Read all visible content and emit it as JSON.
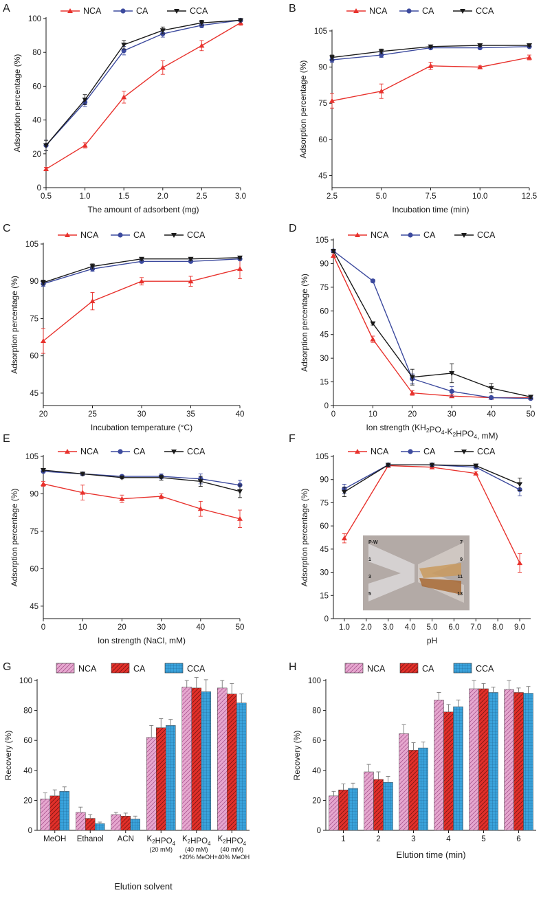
{
  "colors": {
    "NCA": "#e8322d",
    "CA": "#3c4a9e",
    "CCA": "#1a1a1a",
    "barNCA": "#e6a7cf",
    "barCA": "#e2302a",
    "barCCA": "#3aa3dc"
  },
  "chart_data": [
    {
      "panel": "A",
      "type": "line",
      "xlabel": "The amount of adsorbent (mg)",
      "ylabel": "Adsorption percentage (%)",
      "xlim": [
        0.5,
        3.0
      ],
      "ylim": [
        0,
        100
      ],
      "xticks": [
        "0.5",
        "1.0",
        "1.5",
        "2.0",
        "2.5",
        "3.0"
      ],
      "yticks": [
        "0",
        "20",
        "40",
        "60",
        "80",
        "100"
      ],
      "x": [
        0.5,
        1.0,
        1.5,
        2.0,
        2.5,
        3.0
      ],
      "legend": [
        "NCA",
        "CA",
        "CCA"
      ],
      "series": [
        {
          "name": "NCA",
          "values": [
            11,
            25,
            53.5,
            71,
            84,
            97.5
          ],
          "err": [
            1,
            1.5,
            3.5,
            4,
            3,
            1.5
          ]
        },
        {
          "name": "CA",
          "values": [
            25,
            50.5,
            81,
            91,
            96,
            99
          ],
          "err": [
            3,
            2.5,
            2.5,
            2,
            1.5,
            0.5
          ]
        },
        {
          "name": "CCA",
          "values": [
            25,
            52,
            84.5,
            93,
            97.5,
            99
          ],
          "err": [
            3,
            3,
            2.5,
            2,
            1.5,
            0.5
          ]
        }
      ]
    },
    {
      "panel": "B",
      "type": "line",
      "xlabel": "Incubation time (min)",
      "ylabel": "Adsorption percentage (%)",
      "xlim": [
        2.5,
        12.5
      ],
      "ylim": [
        40,
        105
      ],
      "xticks": [
        "2.5",
        "5.0",
        "7.5",
        "10.0",
        "12.5"
      ],
      "yticks": [
        "45",
        "60",
        "75",
        "90",
        "105"
      ],
      "x": [
        2.5,
        5.0,
        7.5,
        10.0,
        12.5
      ],
      "legend": [
        "NCA",
        "CA",
        "CCA"
      ],
      "series": [
        {
          "name": "NCA",
          "values": [
            76,
            80,
            90.5,
            90,
            94
          ],
          "err": [
            3,
            3,
            1.5,
            0.5,
            1
          ]
        },
        {
          "name": "CA",
          "values": [
            93,
            95,
            98,
            98,
            98.5
          ],
          "err": [
            1,
            1,
            0.5,
            0.5,
            0.5
          ]
        },
        {
          "name": "CCA",
          "values": [
            94,
            96.5,
            98.5,
            99,
            99
          ],
          "err": [
            1,
            1,
            0.5,
            0.5,
            0.5
          ]
        }
      ]
    },
    {
      "panel": "C",
      "type": "line",
      "xlabel": "Incubation temperature (°C)",
      "ylabel": "Adsorption percentage (%)",
      "xlim": [
        20,
        40
      ],
      "ylim": [
        40,
        105
      ],
      "xticks": [
        "20",
        "25",
        "30",
        "35",
        "40"
      ],
      "yticks": [
        "45",
        "60",
        "75",
        "90",
        "105"
      ],
      "x": [
        20,
        25,
        30,
        35,
        40
      ],
      "legend": [
        "NCA",
        "CA",
        "CCA"
      ],
      "series": [
        {
          "name": "NCA",
          "values": [
            66,
            82,
            90,
            90,
            95
          ],
          "err": [
            5,
            3.5,
            1.5,
            2,
            4
          ]
        },
        {
          "name": "CA",
          "values": [
            89,
            95,
            98,
            98,
            99
          ],
          "err": [
            1,
            1,
            0.5,
            0.5,
            0.5
          ]
        },
        {
          "name": "CCA",
          "values": [
            89.5,
            96,
            99,
            99,
            99.5
          ],
          "err": [
            1,
            1,
            0.5,
            0.5,
            0.5
          ]
        }
      ]
    },
    {
      "panel": "D",
      "type": "line",
      "xlabel": "Ion strength (KH2PO4-K2HPO4, mM)",
      "ylabel": "Adsorption percentage (%)",
      "xlim": [
        0,
        50
      ],
      "ylim": [
        0,
        105
      ],
      "xticks": [
        "0",
        "10",
        "20",
        "30",
        "40",
        "50"
      ],
      "yticks": [
        "0",
        "15",
        "30",
        "45",
        "60",
        "75",
        "90",
        "105"
      ],
      "x": [
        0,
        10,
        20,
        30,
        40,
        50
      ],
      "legend": [
        "NCA",
        "CA",
        "CCA"
      ],
      "series": [
        {
          "name": "NCA",
          "values": [
            95,
            42,
            8,
            6,
            5,
            5
          ],
          "err": [
            1,
            2,
            1.5,
            1,
            0.5,
            0.5
          ]
        },
        {
          "name": "CA",
          "values": [
            98,
            79,
            17,
            9,
            5,
            4.5
          ],
          "err": [
            1,
            1,
            3,
            3,
            1,
            0.5
          ]
        },
        {
          "name": "CCA",
          "values": [
            98,
            52,
            18,
            20.5,
            11,
            5.5
          ],
          "err": [
            1,
            1,
            5,
            6,
            3,
            1
          ]
        }
      ]
    },
    {
      "panel": "E",
      "type": "line",
      "xlabel": "Ion strength (NaCl, mM)",
      "ylabel": "Adsorption percentage (%)",
      "xlim": [
        0,
        50
      ],
      "ylim": [
        40,
        105
      ],
      "xticks": [
        "0",
        "10",
        "20",
        "30",
        "40",
        "50"
      ],
      "yticks": [
        "45",
        "60",
        "75",
        "90",
        "105"
      ],
      "x": [
        0,
        10,
        20,
        30,
        40,
        50
      ],
      "legend": [
        "NCA",
        "CA",
        "CCA"
      ],
      "series": [
        {
          "name": "NCA",
          "values": [
            94,
            90.5,
            88,
            89,
            84,
            80
          ],
          "err": [
            1,
            3,
            1.5,
            1,
            3,
            3.5
          ]
        },
        {
          "name": "CA",
          "values": [
            99,
            98,
            97,
            97,
            96,
            93.5
          ],
          "err": [
            0.5,
            0.5,
            0.5,
            1,
            2,
            2
          ]
        },
        {
          "name": "CCA",
          "values": [
            99.5,
            98,
            96.5,
            96.5,
            95,
            91
          ],
          "err": [
            0.5,
            0.5,
            0.5,
            1,
            2,
            2.5
          ]
        }
      ]
    },
    {
      "panel": "F",
      "type": "line",
      "xlabel": "pH",
      "ylabel": "Adsorption percentage (%)",
      "xlim": [
        0.5,
        9.5
      ],
      "ylim": [
        0,
        105
      ],
      "xticks": [
        "1.0",
        "2.0",
        "3.0",
        "4.0",
        "5.0",
        "6.0",
        "7.0",
        "8.0",
        "9.0"
      ],
      "yticks": [
        "0",
        "15",
        "30",
        "45",
        "60",
        "75",
        "90",
        "105"
      ],
      "x": [
        1,
        3,
        5,
        7,
        9
      ],
      "legend": [
        "NCA",
        "CA",
        "CCA"
      ],
      "inset_labels": [
        "P-W",
        "1",
        "3",
        "5",
        "7",
        "9",
        "11",
        "13"
      ],
      "series": [
        {
          "name": "NCA",
          "values": [
            52,
            99,
            98,
            94,
            36
          ],
          "err": [
            3,
            1,
            1,
            1,
            6
          ]
        },
        {
          "name": "CA",
          "values": [
            84,
            99.5,
            99.5,
            98,
            83.5
          ],
          "err": [
            3,
            1,
            1,
            1,
            4
          ]
        },
        {
          "name": "CCA",
          "values": [
            82,
            99.5,
            99.5,
            99,
            87
          ],
          "err": [
            3,
            1,
            1,
            1,
            4
          ]
        }
      ]
    },
    {
      "panel": "G",
      "type": "bar",
      "xlabel": "Elution solvent",
      "ylabel": "Recovery (%)",
      "ylim": [
        0,
        100
      ],
      "yticks": [
        "0",
        "20",
        "40",
        "60",
        "80",
        "100"
      ],
      "categories": [
        [
          "MeOH"
        ],
        [
          "Ethanol"
        ],
        [
          "ACN"
        ],
        [
          "K2HPO4",
          "(20 mM)"
        ],
        [
          "K2HPO4",
          "(40 mM)",
          "+20% MeOH"
        ],
        [
          "K2HPO4",
          "(40 mM)",
          "+40% MeOH"
        ]
      ],
      "legend": [
        "NCA",
        "CA",
        "CCA"
      ],
      "series": [
        {
          "name": "NCA",
          "values": [
            21,
            12,
            10.5,
            62,
            95.5,
            95
          ],
          "err": [
            4,
            3.5,
            1.5,
            8,
            4.5,
            5
          ]
        },
        {
          "name": "CA",
          "values": [
            23,
            8,
            9.5,
            68.5,
            95,
            91
          ],
          "err": [
            4,
            2.5,
            2,
            6,
            7,
            7
          ]
        },
        {
          "name": "CCA",
          "values": [
            26,
            4.5,
            7.5,
            70,
            92.5,
            85
          ],
          "err": [
            3,
            1,
            2,
            4,
            8,
            6
          ]
        }
      ]
    },
    {
      "panel": "H",
      "type": "bar",
      "xlabel": "Elution time (min)",
      "ylabel": "Recovery (%)",
      "ylim": [
        0,
        100
      ],
      "yticks": [
        "0",
        "20",
        "40",
        "60",
        "80",
        "100"
      ],
      "categories": [
        [
          "1"
        ],
        [
          "2"
        ],
        [
          "3"
        ],
        [
          "4"
        ],
        [
          "5"
        ],
        [
          "6"
        ]
      ],
      "legend": [
        "NCA",
        "CA",
        "CCA"
      ],
      "series": [
        {
          "name": "NCA",
          "values": [
            23,
            39,
            64.5,
            87,
            94.5,
            94
          ],
          "err": [
            3,
            5,
            6,
            5,
            5.5,
            6
          ]
        },
        {
          "name": "CA",
          "values": [
            27,
            34,
            53.5,
            79,
            94.5,
            92
          ],
          "err": [
            4,
            5,
            5,
            5,
            3.5,
            3
          ]
        },
        {
          "name": "CCA",
          "values": [
            28,
            32,
            55,
            82.5,
            92,
            91.5
          ],
          "err": [
            3.5,
            4,
            4,
            4.5,
            3.5,
            4.5
          ]
        }
      ]
    }
  ]
}
